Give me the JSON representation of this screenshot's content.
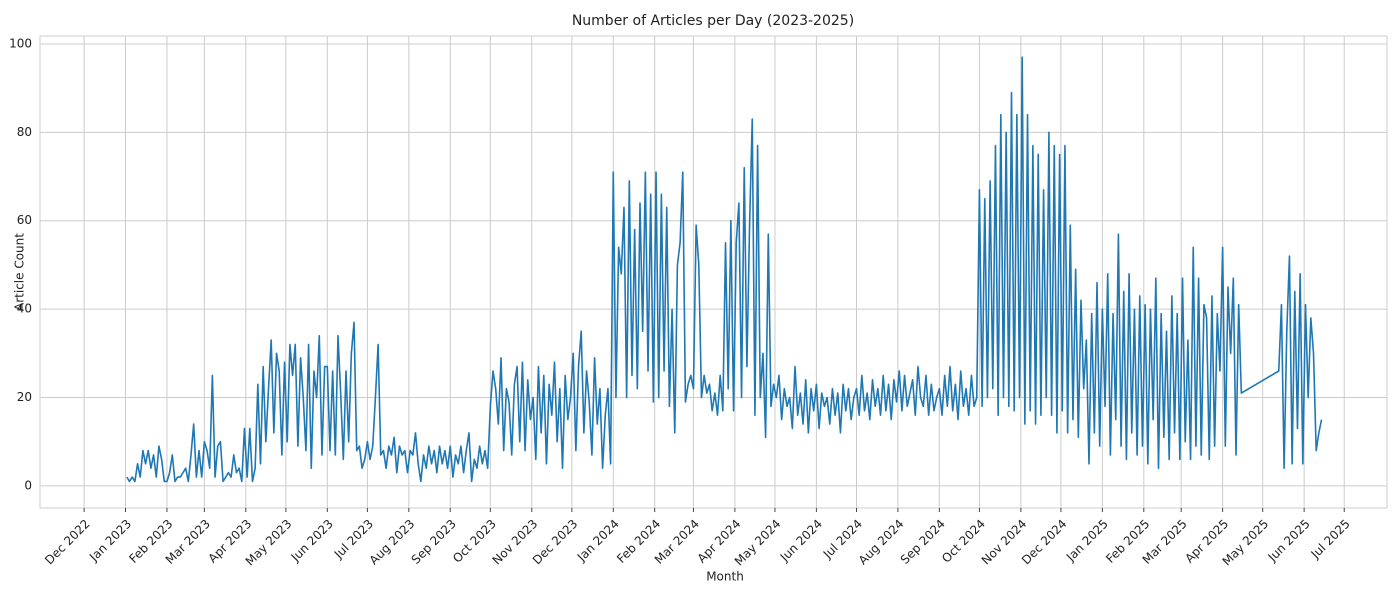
{
  "chart_data": {
    "type": "line",
    "title": "Number of Articles per Day (2023-2025)",
    "x_label": "Month",
    "y_label": "Article Count",
    "color": "#1f77b4",
    "grid": true,
    "xlim": [
      -33,
      975
    ],
    "ylim": [
      -5,
      101.8
    ],
    "yticks": [
      0,
      20,
      40,
      60,
      80,
      100
    ],
    "xticks": [
      {
        "value": 0,
        "label": "Dec 2022"
      },
      {
        "value": 31,
        "label": "Jan 2023"
      },
      {
        "value": 62,
        "label": "Feb 2023"
      },
      {
        "value": 90,
        "label": "Mar 2023"
      },
      {
        "value": 121,
        "label": "Apr 2023"
      },
      {
        "value": 151,
        "label": "May 2023"
      },
      {
        "value": 182,
        "label": "Jun 2023"
      },
      {
        "value": 212,
        "label": "Jul 2023"
      },
      {
        "value": 243,
        "label": "Aug 2023"
      },
      {
        "value": 274,
        "label": "Sep 2023"
      },
      {
        "value": 304,
        "label": "Oct 2023"
      },
      {
        "value": 335,
        "label": "Nov 2023"
      },
      {
        "value": 365,
        "label": "Dec 2023"
      },
      {
        "value": 396,
        "label": "Jan 2024"
      },
      {
        "value": 427,
        "label": "Feb 2024"
      },
      {
        "value": 456,
        "label": "Mar 2024"
      },
      {
        "value": 487,
        "label": "Apr 2024"
      },
      {
        "value": 517,
        "label": "May 2024"
      },
      {
        "value": 548,
        "label": "Jun 2024"
      },
      {
        "value": 578,
        "label": "Jul 2024"
      },
      {
        "value": 609,
        "label": "Aug 2024"
      },
      {
        "value": 640,
        "label": "Sep 2024"
      },
      {
        "value": 670,
        "label": "Oct 2024"
      },
      {
        "value": 701,
        "label": "Nov 2024"
      },
      {
        "value": 731,
        "label": "Dec 2024"
      },
      {
        "value": 762,
        "label": "Jan 2025"
      },
      {
        "value": 793,
        "label": "Feb 2025"
      },
      {
        "value": 821,
        "label": "Mar 2025"
      },
      {
        "value": 852,
        "label": "Apr 2025"
      },
      {
        "value": 882,
        "label": "May 2025"
      },
      {
        "value": 913,
        "label": "Jun 2025"
      },
      {
        "value": 943,
        "label": "Jul 2025"
      }
    ],
    "x": [
      32,
      34,
      36,
      38,
      40,
      42,
      44,
      46,
      48,
      50,
      52,
      54,
      56,
      58,
      60,
      62,
      64,
      66,
      68,
      70,
      72,
      74,
      76,
      78,
      80,
      82,
      84,
      86,
      88,
      90,
      92,
      94,
      96,
      98,
      100,
      102,
      104,
      106,
      108,
      110,
      112,
      114,
      116,
      118,
      120,
      122,
      124,
      126,
      128,
      130,
      132,
      134,
      136,
      138,
      140,
      142,
      144,
      146,
      148,
      150,
      152,
      154,
      156,
      158,
      160,
      162,
      164,
      166,
      168,
      170,
      172,
      174,
      176,
      178,
      180,
      182,
      184,
      186,
      188,
      190,
      192,
      194,
      196,
      198,
      200,
      202,
      204,
      206,
      208,
      210,
      212,
      214,
      216,
      218,
      220,
      222,
      224,
      226,
      228,
      230,
      232,
      234,
      236,
      238,
      240,
      242,
      244,
      246,
      248,
      250,
      252,
      254,
      256,
      258,
      260,
      262,
      264,
      266,
      268,
      270,
      272,
      274,
      276,
      278,
      280,
      282,
      284,
      286,
      288,
      290,
      292,
      294,
      296,
      298,
      300,
      302,
      304,
      306,
      308,
      310,
      312,
      314,
      316,
      318,
      320,
      322,
      324,
      326,
      328,
      330,
      332,
      334,
      336,
      338,
      340,
      342,
      344,
      346,
      348,
      350,
      352,
      354,
      356,
      358,
      360,
      362,
      364,
      366,
      368,
      370,
      372,
      374,
      376,
      378,
      380,
      382,
      384,
      386,
      388,
      390,
      392,
      394,
      396,
      398,
      400,
      402,
      404,
      406,
      408,
      410,
      412,
      414,
      416,
      418,
      420,
      422,
      424,
      426,
      428,
      430,
      432,
      434,
      436,
      438,
      440,
      442,
      444,
      446,
      448,
      450,
      452,
      454,
      456,
      458,
      460,
      462,
      464,
      466,
      468,
      470,
      472,
      474,
      476,
      478,
      480,
      482,
      484,
      486,
      488,
      490,
      492,
      494,
      496,
      498,
      500,
      502,
      504,
      506,
      508,
      510,
      512,
      514,
      516,
      518,
      520,
      522,
      524,
      526,
      528,
      530,
      532,
      534,
      536,
      538,
      540,
      542,
      544,
      546,
      548,
      550,
      552,
      554,
      556,
      558,
      560,
      562,
      564,
      566,
      568,
      570,
      572,
      574,
      576,
      578,
      580,
      582,
      584,
      586,
      588,
      590,
      592,
      594,
      596,
      598,
      600,
      602,
      604,
      606,
      608,
      610,
      612,
      614,
      616,
      618,
      620,
      622,
      624,
      626,
      628,
      630,
      632,
      634,
      636,
      638,
      640,
      642,
      644,
      646,
      648,
      650,
      652,
      654,
      656,
      658,
      660,
      662,
      664,
      666,
      668,
      670,
      672,
      674,
      676,
      678,
      680,
      682,
      684,
      686,
      688,
      690,
      692,
      694,
      696,
      698,
      700,
      702,
      704,
      706,
      708,
      710,
      712,
      714,
      716,
      718,
      720,
      722,
      724,
      726,
      728,
      730,
      732,
      734,
      736,
      738,
      740,
      742,
      744,
      746,
      748,
      750,
      752,
      754,
      756,
      758,
      760,
      762,
      764,
      766,
      768,
      770,
      772,
      774,
      776,
      778,
      780,
      782,
      784,
      786,
      788,
      790,
      792,
      794,
      796,
      798,
      800,
      802,
      804,
      806,
      808,
      810,
      812,
      814,
      816,
      818,
      820,
      822,
      824,
      826,
      828,
      830,
      832,
      834,
      836,
      838,
      840,
      842,
      844,
      846,
      848,
      850,
      852,
      854,
      856,
      858,
      860,
      862,
      864,
      866,
      894,
      896,
      898,
      900,
      902,
      904,
      906,
      908,
      910,
      912,
      914,
      916,
      918,
      920,
      922,
      924,
      926
    ],
    "values": [
      2,
      1,
      2,
      1,
      5,
      2,
      8,
      5,
      8,
      4,
      7,
      2,
      9,
      6,
      1,
      1,
      3,
      7,
      1,
      2,
      2,
      3,
      4,
      1,
      7,
      14,
      2,
      8,
      2,
      10,
      8,
      4,
      25,
      2,
      9,
      10,
      1,
      2,
      3,
      2,
      7,
      3,
      4,
      1,
      13,
      2,
      13,
      1,
      4,
      23,
      5,
      27,
      10,
      22,
      33,
      12,
      30,
      26,
      7,
      28,
      10,
      32,
      25,
      32,
      9,
      29,
      20,
      8,
      32,
      4,
      26,
      20,
      34,
      7,
      27,
      27,
      8,
      26,
      7,
      34,
      21,
      6,
      26,
      10,
      30,
      37,
      8,
      9,
      4,
      6,
      10,
      6,
      9,
      20,
      32,
      7,
      8,
      4,
      9,
      7,
      11,
      3,
      9,
      7,
      8,
      3,
      8,
      7,
      12,
      5,
      1,
      7,
      4,
      9,
      5,
      8,
      3,
      9,
      5,
      8,
      4,
      9,
      2,
      7,
      5,
      9,
      3,
      8,
      12,
      1,
      6,
      4,
      9,
      5,
      8,
      4,
      18,
      26,
      22,
      14,
      29,
      8,
      22,
      19,
      7,
      23,
      27,
      10,
      28,
      8,
      24,
      15,
      20,
      6,
      27,
      12,
      25,
      5,
      23,
      16,
      28,
      10,
      22,
      4,
      25,
      15,
      20,
      30,
      8,
      27,
      35,
      12,
      26,
      19,
      7,
      29,
      14,
      22,
      4,
      16,
      22,
      5,
      71,
      20,
      54,
      48,
      63,
      20,
      69,
      25,
      58,
      22,
      64,
      35,
      71,
      26,
      66,
      19,
      71,
      20,
      66,
      26,
      63,
      18,
      40,
      12,
      50,
      55,
      71,
      19,
      23,
      25,
      22,
      59,
      50,
      20,
      25,
      21,
      23,
      17,
      21,
      16,
      25,
      17,
      55,
      22,
      60,
      17,
      55,
      64,
      20,
      72,
      27,
      59,
      83,
      16,
      77,
      20,
      30,
      11,
      57,
      18,
      23,
      20,
      25,
      15,
      22,
      18,
      20,
      13,
      27,
      16,
      21,
      14,
      24,
      12,
      22,
      17,
      23,
      13,
      21,
      18,
      20,
      14,
      22,
      16,
      21,
      12,
      23,
      17,
      22,
      15,
      20,
      22,
      16,
      25,
      17,
      21,
      15,
      24,
      18,
      22,
      16,
      25,
      17,
      23,
      15,
      24,
      19,
      26,
      17,
      25,
      18,
      21,
      24,
      16,
      27,
      20,
      18,
      25,
      16,
      23,
      17,
      20,
      22,
      16,
      25,
      18,
      27,
      17,
      23,
      15,
      26,
      18,
      22,
      16,
      25,
      18,
      20,
      67,
      18,
      65,
      20,
      69,
      22,
      77,
      16,
      84,
      20,
      80,
      18,
      89,
      17,
      84,
      20,
      97,
      14,
      84,
      17,
      77,
      14,
      75,
      16,
      67,
      20,
      80,
      16,
      77,
      12,
      75,
      17,
      77,
      12,
      59,
      15,
      49,
      11,
      42,
      22,
      33,
      5,
      39,
      12,
      46,
      9,
      40,
      18,
      48,
      7,
      39,
      15,
      57,
      9,
      44,
      6,
      48,
      12,
      40,
      7,
      43,
      9,
      41,
      5,
      40,
      15,
      47,
      4,
      39,
      11,
      35,
      6,
      43,
      12,
      39,
      6,
      47,
      10,
      33,
      6,
      54,
      9,
      47,
      7,
      41,
      38,
      6,
      43,
      9,
      39,
      26,
      54,
      9,
      45,
      30,
      47,
      7,
      41,
      21,
      26,
      41,
      4,
      35,
      52,
      5,
      44,
      13,
      48,
      5,
      41,
      20,
      38,
      30,
      8,
      12,
      15
    ]
  }
}
